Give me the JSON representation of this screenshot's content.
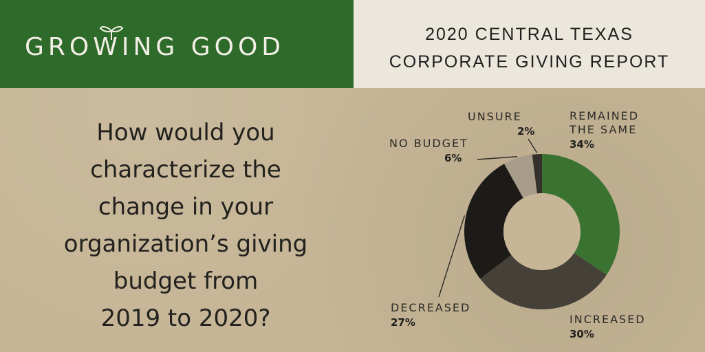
{
  "header": {
    "brand_name": "GROWING GOOD",
    "report_title_line1": "2020 CENTRAL TEXAS",
    "report_title_line2": "CORPORATE GIVING REPORT"
  },
  "question": {
    "lines": [
      "How would you",
      "characterize the",
      "change in your",
      "organization’s giving",
      "budget from",
      "2019 to 2020?"
    ]
  },
  "colors": {
    "brand_green": "#2e6b2a",
    "header_cream": "#ece7dc",
    "kraft_background": "#c6b596"
  },
  "chart_data": {
    "type": "pie",
    "donut": true,
    "start_angle_degrees": 0,
    "direction": "clockwise",
    "slices": [
      {
        "label": "REMAINED THE SAME",
        "label_lines": [
          "REMAINED",
          "THE SAME"
        ],
        "value": 34,
        "display": "34%",
        "color": "#3a7330"
      },
      {
        "label": "INCREASED",
        "label_lines": [
          "INCREASED"
        ],
        "value": 30,
        "display": "30%",
        "color": "#454038"
      },
      {
        "label": "DECREASED",
        "label_lines": [
          "DECREASED"
        ],
        "value": 27,
        "display": "27%",
        "color": "#1d1b18"
      },
      {
        "label": "NO BUDGET",
        "label_lines": [
          "NO BUDGET"
        ],
        "value": 6,
        "display": "6%",
        "color": "#a89d8a"
      },
      {
        "label": "UNSURE",
        "label_lines": [
          "UNSURE"
        ],
        "value": 2,
        "display": "2%",
        "color": "#34312c"
      }
    ]
  }
}
